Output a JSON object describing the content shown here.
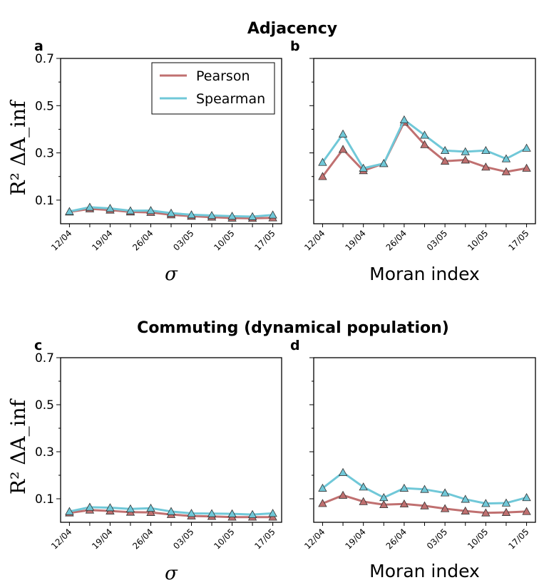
{
  "figure": {
    "titles": [
      "Adjacency",
      "Commuting (dynamical population)"
    ]
  },
  "legend": {
    "entries": [
      {
        "label": "Pearson",
        "color": "#c07070"
      },
      {
        "label": "Spearman",
        "color": "#70c8d8"
      }
    ]
  },
  "chart_data": [
    {
      "panel": "a",
      "type": "line",
      "group_title": "Adjacency",
      "x": [
        "12/04",
        "",
        "19/04",
        "",
        "26/04",
        "",
        "03/05",
        "",
        "10/05",
        "",
        "17/05"
      ],
      "xticklabels": [
        "12/04",
        "19/04",
        "26/04",
        "03/05",
        "10/05",
        "17/05"
      ],
      "yticklabels": [
        "0.1",
        "0.3",
        "0.5",
        "0.7"
      ],
      "ylim": [
        0.0,
        0.7
      ],
      "xlabel": "σ",
      "ylabel": "R² ΔA_inf",
      "series": [
        {
          "name": "Pearson",
          "values": [
            0.05,
            0.063,
            0.058,
            0.05,
            0.048,
            0.038,
            0.032,
            0.028,
            0.024,
            0.023,
            0.025
          ]
        },
        {
          "name": "Spearman",
          "values": [
            0.052,
            0.07,
            0.065,
            0.055,
            0.056,
            0.045,
            0.038,
            0.035,
            0.032,
            0.03,
            0.037
          ]
        }
      ]
    },
    {
      "panel": "b",
      "type": "line",
      "group_title": "Adjacency",
      "x": [
        "12/04",
        "",
        "19/04",
        "",
        "26/04",
        "",
        "03/05",
        "",
        "10/05",
        "",
        "17/05"
      ],
      "xticklabels": [
        "12/04",
        "19/04",
        "26/04",
        "03/05",
        "10/05",
        "17/05"
      ],
      "ylim": [
        0.0,
        0.7
      ],
      "xlabel": "Moran index",
      "series": [
        {
          "name": "Pearson",
          "values": [
            0.2,
            0.315,
            0.225,
            0.255,
            0.43,
            0.335,
            0.265,
            0.27,
            0.24,
            0.22,
            0.235
          ]
        },
        {
          "name": "Spearman",
          "values": [
            0.26,
            0.38,
            0.235,
            0.255,
            0.44,
            0.375,
            0.31,
            0.305,
            0.31,
            0.275,
            0.32
          ]
        }
      ]
    },
    {
      "panel": "c",
      "type": "line",
      "group_title": "Commuting (dynamical population)",
      "x": [
        "12/04",
        "",
        "19/04",
        "",
        "26/04",
        "",
        "03/05",
        "",
        "10/05",
        "",
        "17/05"
      ],
      "xticklabels": [
        "12/04",
        "19/04",
        "26/04",
        "03/05",
        "10/05",
        "17/05"
      ],
      "yticklabels": [
        "0.1",
        "0.3",
        "0.5",
        "0.7"
      ],
      "ylim": [
        0.0,
        0.7
      ],
      "xlabel": "σ",
      "ylabel": "R² ΔA_inf",
      "series": [
        {
          "name": "Pearson",
          "values": [
            0.04,
            0.052,
            0.048,
            0.043,
            0.042,
            0.033,
            0.027,
            0.025,
            0.022,
            0.022,
            0.022
          ]
        },
        {
          "name": "Spearman",
          "values": [
            0.046,
            0.064,
            0.062,
            0.057,
            0.06,
            0.046,
            0.038,
            0.037,
            0.036,
            0.033,
            0.038
          ]
        }
      ]
    },
    {
      "panel": "d",
      "type": "line",
      "group_title": "Commuting (dynamical population)",
      "x": [
        "12/04",
        "",
        "19/04",
        "",
        "26/04",
        "",
        "03/05",
        "",
        "10/05",
        "",
        "17/05"
      ],
      "xticklabels": [
        "12/04",
        "19/04",
        "26/04",
        "03/05",
        "10/05",
        "17/05"
      ],
      "ylim": [
        0.0,
        0.7
      ],
      "xlabel": "Moran index",
      "series": [
        {
          "name": "Pearson",
          "values": [
            0.08,
            0.115,
            0.088,
            0.075,
            0.078,
            0.07,
            0.058,
            0.048,
            0.04,
            0.042,
            0.046
          ]
        },
        {
          "name": "Spearman",
          "values": [
            0.145,
            0.212,
            0.15,
            0.105,
            0.145,
            0.14,
            0.125,
            0.098,
            0.08,
            0.082,
            0.105
          ]
        }
      ]
    }
  ]
}
